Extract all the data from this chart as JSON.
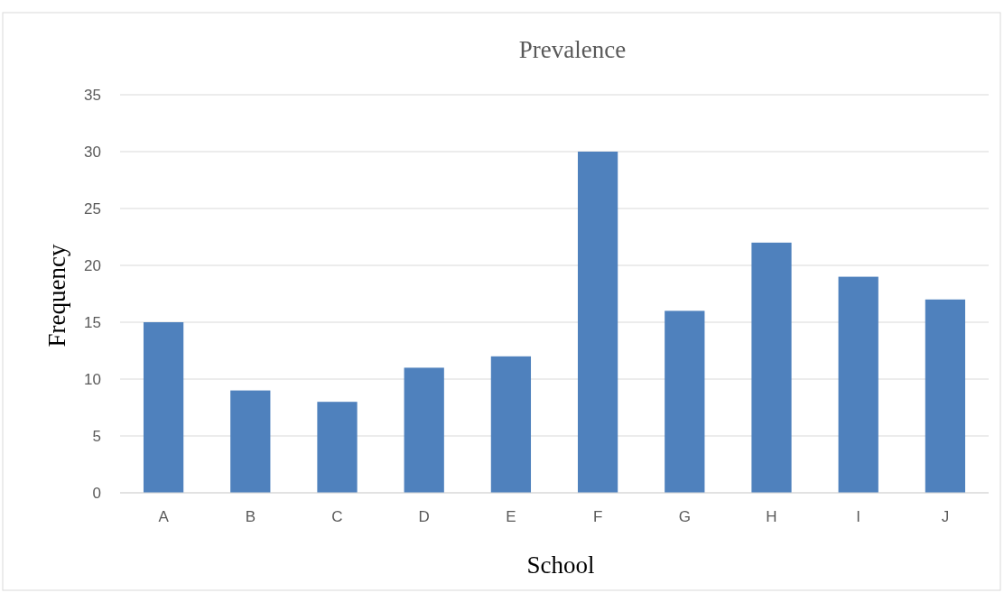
{
  "chart_data": {
    "type": "bar",
    "title": "Prevalence",
    "xlabel": "School",
    "ylabel": "Frequency",
    "categories": [
      "A",
      "B",
      "C",
      "D",
      "E",
      "F",
      "G",
      "H",
      "I",
      "J"
    ],
    "values": [
      15,
      9,
      8,
      11,
      12,
      30,
      16,
      22,
      19,
      17
    ],
    "color": "#4f81bd",
    "ylim": [
      0,
      35
    ],
    "yticks": [
      0,
      5,
      10,
      15,
      20,
      25,
      30,
      35
    ],
    "grid": "y"
  }
}
